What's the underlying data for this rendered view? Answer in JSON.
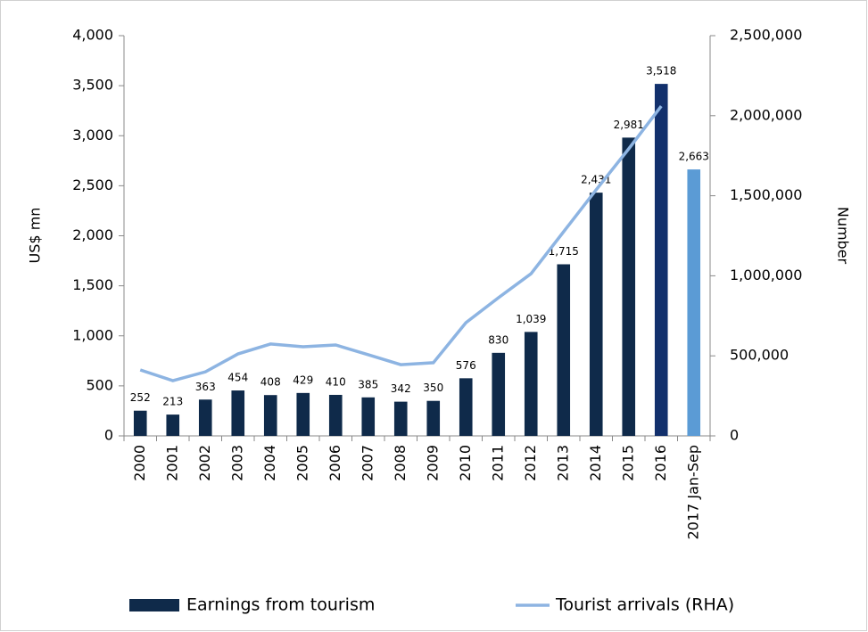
{
  "chart_data": {
    "type": "bar",
    "categories": [
      "2000",
      "2001",
      "2002",
      "2003",
      "2004",
      "2005",
      "2006",
      "2007",
      "2008",
      "2009",
      "2010",
      "2011",
      "2012",
      "2013",
      "2014",
      "2015",
      "2016",
      "2017 Jan-Sep"
    ],
    "series": [
      {
        "name": "Earnings from tourism",
        "type": "bar",
        "color": "#0f2a4a",
        "colors": [
          "#0f2a4a",
          "#0f2a4a",
          "#0f2a4a",
          "#0f2a4a",
          "#0f2a4a",
          "#0f2a4a",
          "#0f2a4a",
          "#0f2a4a",
          "#0f2a4a",
          "#0f2a4a",
          "#0f2a4a",
          "#0f2a4a",
          "#0f2a4a",
          "#0f2a4a",
          "#0f2a4a",
          "#0f2a4a",
          "#12306c",
          "#5b9bd5"
        ],
        "values": [
          252,
          213,
          363,
          454,
          408,
          429,
          410,
          385,
          342,
          350,
          576,
          830,
          1039,
          1715,
          2431,
          2981,
          3518,
          2663
        ],
        "value_labels": [
          "252",
          "213",
          "363",
          "454",
          "408",
          "429",
          "410",
          "385",
          "342",
          "350",
          "576",
          "830",
          "1,039",
          "1,715",
          "2,431",
          "2,981",
          "3,518",
          "2,663"
        ]
      },
      {
        "name": "Tourist arrivals (RHA)",
        "type": "line",
        "color": "#8db4e2",
        "axis": "y2",
        "values": [
          412000,
          345000,
          400000,
          512000,
          574000,
          557000,
          568000,
          507000,
          445000,
          457000,
          707000,
          863000,
          1013000,
          1275000,
          1537000,
          1793000,
          2060000,
          null
        ]
      }
    ],
    "y_label": "US$ mn",
    "y2_label": "Number",
    "ylim": [
      0,
      4000
    ],
    "yticks": [
      0,
      {
        "value": 500,
        "label": "500"
      },
      {
        "value": 1000,
        "label": "1,000"
      },
      {
        "value": 1500,
        "label": "1,500"
      },
      {
        "value": 2000,
        "label": "2,000"
      },
      {
        "value": 2500,
        "label": "2,500"
      },
      {
        "value": 3000,
        "label": "3,000"
      },
      {
        "value": 3500,
        "label": "3,500"
      },
      {
        "value": 4000,
        "label": "4,000"
      }
    ],
    "y2lim": [
      0,
      2500000
    ],
    "y2ticks": [
      0,
      {
        "value": 500000,
        "label": "500,000"
      },
      {
        "value": 1000000,
        "label": "1,000,000"
      },
      {
        "value": 1500000,
        "label": "1,500,000"
      },
      {
        "value": 2000000,
        "label": "2,000,000"
      },
      {
        "value": 2500000,
        "label": "2,500,000"
      }
    ],
    "legend": "bottom"
  }
}
